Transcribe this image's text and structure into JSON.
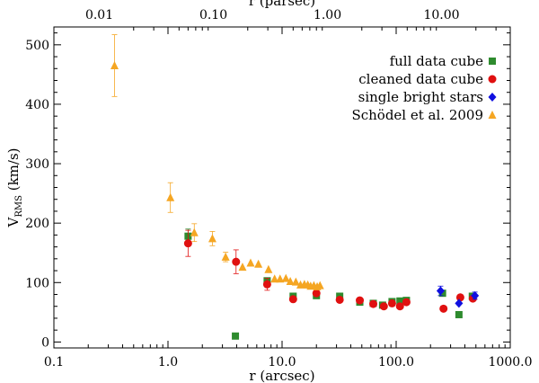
{
  "chart_data": {
    "type": "scatter",
    "xscale": "log",
    "xlim": [
      0.1,
      1000.0
    ],
    "ylim": [
      -10,
      530
    ],
    "xlabel": "r (arcsec)",
    "x2label": "r (parsec)",
    "ylabel_main": "V",
    "ylabel_sub": "RMS",
    "ylabel_unit": " (km/s)",
    "xticks": [
      {
        "value": 0.1,
        "label": "0.1"
      },
      {
        "value": 1.0,
        "label": "1.0"
      },
      {
        "value": 10.0,
        "label": "10.0"
      },
      {
        "value": 100.0,
        "label": "100.0"
      },
      {
        "value": 1000.0,
        "label": "1000.0"
      }
    ],
    "x2ticks": [
      {
        "value": 0.01,
        "label": "0.01"
      },
      {
        "value": 0.1,
        "label": "0.10"
      },
      {
        "value": 1.0,
        "label": "1.00"
      },
      {
        "value": 10.0,
        "label": "10.00"
      }
    ],
    "arcsec_per_parsec": 25.0,
    "yticks": [
      {
        "value": 0,
        "label": "0"
      },
      {
        "value": 100,
        "label": "100"
      },
      {
        "value": 200,
        "label": "200"
      },
      {
        "value": 300,
        "label": "300"
      },
      {
        "value": 400,
        "label": "400"
      },
      {
        "value": 500,
        "label": "500"
      }
    ],
    "legend_position": "top-right",
    "series": [
      {
        "name": "full data cube",
        "marker": "square",
        "color": "#2e8b2e",
        "points": [
          {
            "x": 1.5,
            "y": 178,
            "err": 12
          },
          {
            "x": 3.9,
            "y": 10
          },
          {
            "x": 7.4,
            "y": 103
          },
          {
            "x": 12.5,
            "y": 77
          },
          {
            "x": 20.0,
            "y": 78
          },
          {
            "x": 32.0,
            "y": 77
          },
          {
            "x": 48.0,
            "y": 67
          },
          {
            "x": 63.0,
            "y": 65
          },
          {
            "x": 76.0,
            "y": 62
          },
          {
            "x": 92.0,
            "y": 68
          },
          {
            "x": 108.0,
            "y": 69
          },
          {
            "x": 123.0,
            "y": 70
          },
          {
            "x": 255.0,
            "y": 82
          },
          {
            "x": 355.0,
            "y": 46
          },
          {
            "x": 465.0,
            "y": 77
          }
        ]
      },
      {
        "name": "cleaned data cube",
        "marker": "circle",
        "color": "#e01010",
        "points": [
          {
            "x": 1.5,
            "y": 166,
            "err": 22
          },
          {
            "x": 3.95,
            "y": 135,
            "err": 20
          },
          {
            "x": 7.4,
            "y": 97,
            "err": 10
          },
          {
            "x": 12.5,
            "y": 72
          },
          {
            "x": 20.0,
            "y": 82
          },
          {
            "x": 32.0,
            "y": 71
          },
          {
            "x": 48.0,
            "y": 70
          },
          {
            "x": 63.0,
            "y": 64
          },
          {
            "x": 78.0,
            "y": 60
          },
          {
            "x": 92.0,
            "y": 65
          },
          {
            "x": 108.0,
            "y": 60
          },
          {
            "x": 123.0,
            "y": 67
          },
          {
            "x": 260.0,
            "y": 56
          },
          {
            "x": 365.0,
            "y": 75
          },
          {
            "x": 470.0,
            "y": 73
          }
        ]
      },
      {
        "name": "single bright stars",
        "marker": "diamond",
        "color": "#1010e0",
        "points": [
          {
            "x": 245.0,
            "y": 86,
            "err": 8
          },
          {
            "x": 355.0,
            "y": 65
          },
          {
            "x": 490.0,
            "y": 78,
            "err": 6
          }
        ]
      },
      {
        "name": "Schödel et al. 2009",
        "marker": "triangle",
        "color": "#f5a623",
        "points": [
          {
            "x": 0.34,
            "y": 465,
            "err": 52
          },
          {
            "x": 1.05,
            "y": 243,
            "err": 25
          },
          {
            "x": 1.7,
            "y": 184,
            "err": 15
          },
          {
            "x": 2.45,
            "y": 174,
            "err": 12
          },
          {
            "x": 3.2,
            "y": 143,
            "err": 8
          },
          {
            "x": 4.5,
            "y": 126
          },
          {
            "x": 5.3,
            "y": 133
          },
          {
            "x": 6.2,
            "y": 131
          },
          {
            "x": 7.6,
            "y": 122
          },
          {
            "x": 8.6,
            "y": 106
          },
          {
            "x": 9.6,
            "y": 106
          },
          {
            "x": 10.8,
            "y": 107
          },
          {
            "x": 11.8,
            "y": 102
          },
          {
            "x": 13.2,
            "y": 101
          },
          {
            "x": 14.5,
            "y": 96
          },
          {
            "x": 15.7,
            "y": 97
          },
          {
            "x": 16.8,
            "y": 96
          },
          {
            "x": 17.8,
            "y": 94
          },
          {
            "x": 19.0,
            "y": 95
          },
          {
            "x": 20.3,
            "y": 93
          },
          {
            "x": 21.5,
            "y": 95
          }
        ]
      }
    ]
  }
}
